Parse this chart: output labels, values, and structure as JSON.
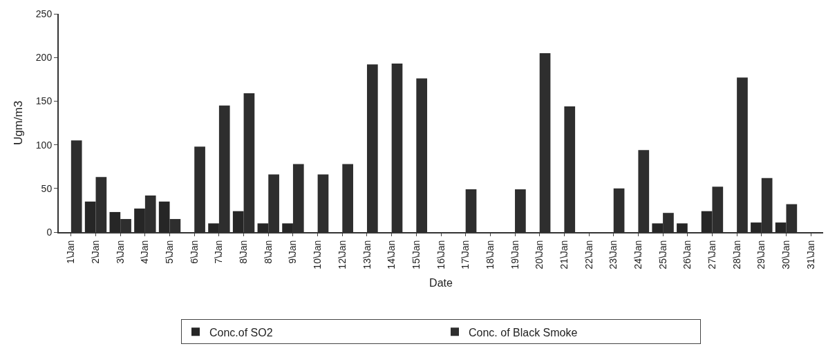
{
  "chart_data": {
    "type": "bar",
    "xlabel": "Date",
    "ylabel": "Ugm/m3",
    "categories": [
      "1\\Jan",
      "2\\Jan",
      "3\\Jan",
      "4\\Jan",
      "5\\Jan",
      "6\\Jan",
      "7\\Jan",
      "8\\Jan",
      "8\\Jan",
      "9\\Jan",
      "10\\Jan",
      "12\\Jan",
      "13\\Jan",
      "14\\Jan",
      "15\\Jan",
      "16\\Jan",
      "17\\Jan",
      "18\\Jan",
      "19\\Jan",
      "20\\Jan",
      "21\\Jan",
      "22\\Jan",
      "23\\Jan",
      "24\\Jan",
      "25\\Jan",
      "26\\Jan",
      "27\\Jan",
      "28\\Jan",
      "29\\Jan",
      "30\\Jan",
      "31\\Jan"
    ],
    "series": [
      {
        "name": "Conc.of SO2",
        "color": "#262626",
        "values": [
          null,
          35,
          23,
          27,
          35,
          null,
          10,
          24,
          10,
          10,
          null,
          null,
          null,
          null,
          null,
          null,
          null,
          null,
          null,
          null,
          null,
          null,
          null,
          null,
          10,
          10,
          24,
          null,
          11,
          11,
          null
        ]
      },
      {
        "name": "Conc. of Black Smoke",
        "color": "#2e2e2e",
        "values": [
          105,
          63,
          15,
          42,
          15,
          98,
          145,
          159,
          66,
          78,
          66,
          78,
          192,
          193,
          176,
          null,
          49,
          null,
          49,
          205,
          144,
          null,
          50,
          94,
          22,
          null,
          52,
          177,
          62,
          32,
          null
        ]
      }
    ],
    "ylim": [
      0,
      250
    ],
    "yticks": [
      0,
      50,
      100,
      150,
      200,
      250
    ],
    "legend": "bottom"
  }
}
